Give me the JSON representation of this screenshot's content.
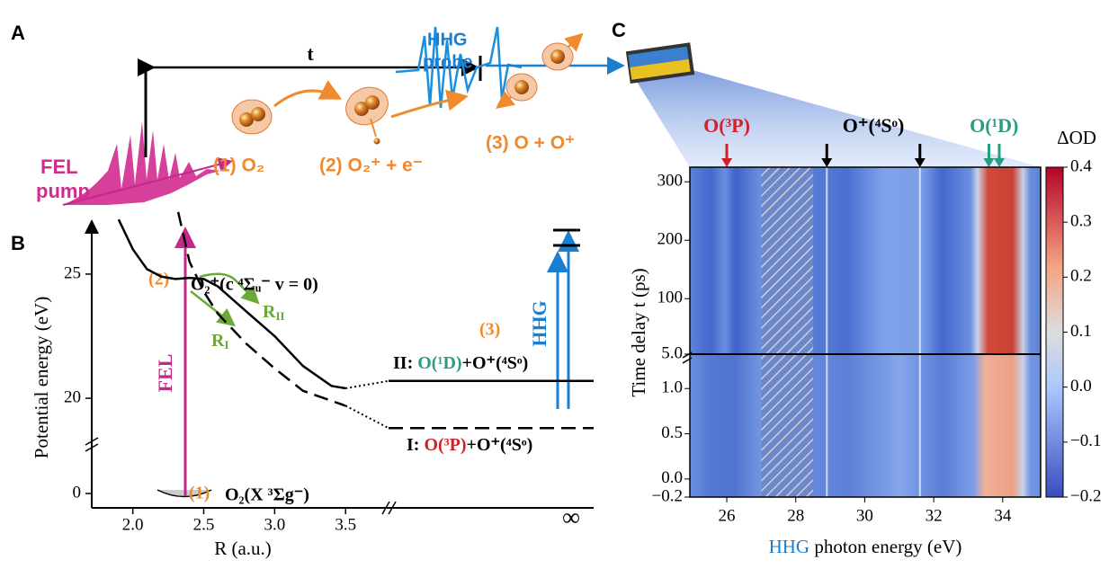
{
  "panel_a": {
    "label": "A",
    "pump": [
      "FEL",
      "pump"
    ],
    "probe": [
      "HHG",
      "probe"
    ],
    "delay": "t",
    "steps": [
      "(1) O₂",
      "(2) O₂⁺ + e⁻",
      "(3) O + O⁺"
    ]
  },
  "chart_data": [
    {
      "type": "line",
      "label": "B",
      "xlabel": "R (a.u.)",
      "ylabel": "Potential energy (eV)",
      "xlim": [
        1.85,
        3.6
      ],
      "ylim": [
        17,
        28
      ],
      "xticks": [
        {
          "value": 2,
          "label": "2.0"
        },
        {
          "value": 2.5,
          "label": "2.5"
        },
        {
          "value": 3,
          "label": "3.0"
        },
        {
          "value": 3.5,
          "label": "3.5"
        }
      ],
      "x_infinity_label": "∞",
      "yticks": [
        20,
        25
      ],
      "y_lower_ticks": [
        0
      ],
      "series": [
        {
          "color": "#000000",
          "dash": false,
          "x": [
            1.9,
            2.0,
            2.1,
            2.2,
            2.3,
            2.4,
            2.5,
            2.6,
            2.8,
            3.0,
            3.2,
            3.4,
            3.5
          ],
          "values": [
            27.2,
            26.0,
            25.2,
            24.9,
            24.8,
            24.85,
            24.8,
            24.5,
            23.5,
            22.5,
            21.3,
            20.5,
            20.4
          ]
        },
        {
          "color": "#000000",
          "dash": true,
          "x": [
            2.32,
            2.4,
            2.5,
            2.6,
            2.8,
            3.0,
            3.2,
            3.5
          ],
          "values": [
            27.5,
            25.5,
            24.3,
            23.4,
            22.2,
            21.2,
            20.3,
            19.7
          ]
        }
      ],
      "limits": [
        20.7,
        18.8
      ],
      "annotations": {
        "state_c_num": "(2)",
        "state_c": "O₂⁺(c ⁴Σᵤ⁻ v = 0)",
        "fel": "FEL",
        "hhg": "HHG",
        "step3": "(3)",
        "r_ii": [
          "R",
          "II"
        ],
        "r_i": [
          "R",
          "I"
        ],
        "channel_ii": [
          "II: ",
          "O(¹D)",
          "+O⁺(⁴Sᵒ)"
        ],
        "channel_i": [
          "I: ",
          "O(³P)",
          "+O⁺(⁴Sᵒ)"
        ],
        "ground_num": "(1)",
        "ground": "O₂(X ³Σg⁻)"
      }
    },
    {
      "type": "heatmap",
      "label": "C",
      "xlabel": [
        "HHG",
        " photon energy (eV)"
      ],
      "ylabel": "Time delay t (ps)",
      "xlim": [
        24.93,
        35.1
      ],
      "xticks": [
        26,
        28,
        30,
        32,
        34
      ],
      "ylim": [
        5,
        325
      ],
      "yticks": [
        {
          "value": 5,
          "label": "5.0"
        },
        100,
        200,
        300
      ],
      "ylim_lower": [
        -0.2,
        1.38
      ],
      "yticks_lower": [
        {
          "value": -0.2,
          "label": "−0.2"
        },
        {
          "value": 0,
          "label": "0.0"
        },
        0.5,
        {
          "value": 1,
          "label": "1.0"
        }
      ],
      "masked": [
        27,
        28.5
      ],
      "clabel": "ΔOD",
      "clim": [
        -0.2,
        0.4
      ],
      "cticks": [
        {
          "value": -0.2,
          "label": "−0.2"
        },
        {
          "value": -0.1,
          "label": "−0.1"
        },
        {
          "value": 0,
          "label": "0.0"
        },
        0.1,
        0.2,
        0.3,
        0.4
      ],
      "peaks": [
        {
          "label": "O(³P)",
          "color": "#d0202a",
          "energies": [
            26.0
          ]
        },
        {
          "label": "O⁺(⁴Sᵒ)",
          "color": "#000000",
          "energies": [
            28.9,
            31.6
          ]
        },
        {
          "label": "O(¹D)",
          "color": "#2a9a80",
          "energies": [
            33.6,
            33.9
          ]
        }
      ]
    }
  ]
}
